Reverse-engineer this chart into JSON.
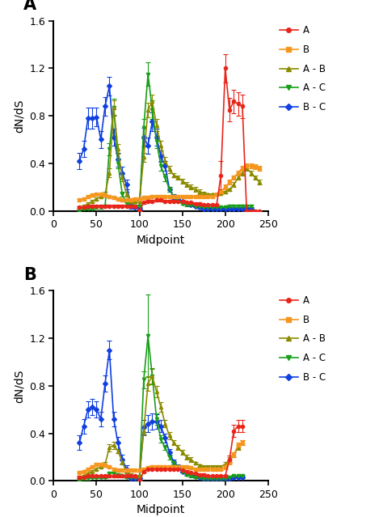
{
  "panel_A": {
    "A": {
      "x": [
        30,
        35,
        40,
        45,
        50,
        55,
        60,
        65,
        70,
        75,
        80,
        85,
        90,
        95,
        100,
        105,
        110,
        115,
        120,
        125,
        130,
        135,
        140,
        145,
        150,
        155,
        160,
        165,
        170,
        175,
        180,
        185,
        190,
        195,
        200,
        205,
        210,
        215,
        220,
        225,
        230,
        235,
        240
      ],
      "y": [
        0.03,
        0.03,
        0.04,
        0.04,
        0.04,
        0.04,
        0.04,
        0.04,
        0.04,
        0.04,
        0.04,
        0.04,
        0.04,
        0.04,
        0.0,
        0.07,
        0.08,
        0.08,
        0.09,
        0.09,
        0.08,
        0.08,
        0.08,
        0.08,
        0.08,
        0.07,
        0.07,
        0.06,
        0.06,
        0.05,
        0.05,
        0.05,
        0.05,
        0.3,
        1.2,
        0.85,
        0.92,
        0.9,
        0.88,
        0.0,
        0.0,
        0.0,
        0.0
      ],
      "yerr": [
        0.01,
        0.01,
        0.01,
        0.01,
        0.01,
        0.01,
        0.01,
        0.01,
        0.01,
        0.01,
        0.01,
        0.01,
        0.01,
        0.01,
        0.0,
        0.01,
        0.01,
        0.01,
        0.01,
        0.01,
        0.01,
        0.01,
        0.01,
        0.01,
        0.01,
        0.01,
        0.01,
        0.01,
        0.01,
        0.01,
        0.01,
        0.01,
        0.01,
        0.12,
        0.12,
        0.1,
        0.1,
        0.1,
        0.1,
        0.0,
        0.0,
        0.0,
        0.0
      ]
    },
    "B": {
      "x": [
        30,
        35,
        40,
        45,
        50,
        55,
        60,
        65,
        70,
        75,
        80,
        85,
        90,
        95,
        100,
        105,
        110,
        115,
        120,
        125,
        130,
        135,
        140,
        145,
        150,
        155,
        160,
        165,
        170,
        175,
        180,
        185,
        190,
        195,
        200,
        205,
        210,
        215,
        220,
        225,
        230,
        235,
        240
      ],
      "y": [
        0.09,
        0.1,
        0.12,
        0.13,
        0.14,
        0.14,
        0.13,
        0.12,
        0.11,
        0.1,
        0.09,
        0.09,
        0.09,
        0.1,
        0.1,
        0.11,
        0.11,
        0.12,
        0.12,
        0.12,
        0.12,
        0.12,
        0.12,
        0.12,
        0.12,
        0.12,
        0.12,
        0.12,
        0.12,
        0.12,
        0.12,
        0.12,
        0.14,
        0.16,
        0.2,
        0.24,
        0.28,
        0.32,
        0.36,
        0.38,
        0.38,
        0.37,
        0.36
      ],
      "yerr": [
        0.01,
        0.01,
        0.01,
        0.01,
        0.01,
        0.01,
        0.01,
        0.01,
        0.01,
        0.01,
        0.01,
        0.01,
        0.01,
        0.01,
        0.01,
        0.01,
        0.01,
        0.01,
        0.01,
        0.01,
        0.01,
        0.01,
        0.01,
        0.01,
        0.01,
        0.01,
        0.01,
        0.01,
        0.01,
        0.01,
        0.01,
        0.01,
        0.01,
        0.01,
        0.02,
        0.02,
        0.02,
        0.02,
        0.02,
        0.02,
        0.02,
        0.02,
        0.02
      ]
    },
    "AB": {
      "x": [
        30,
        35,
        40,
        45,
        50,
        55,
        60,
        65,
        70,
        75,
        80,
        85,
        90,
        95,
        100,
        105,
        110,
        115,
        120,
        125,
        130,
        135,
        140,
        145,
        150,
        155,
        160,
        165,
        170,
        175,
        180,
        185,
        190,
        195,
        200,
        205,
        210,
        215,
        220,
        225,
        230,
        235,
        240
      ],
      "y": [
        0.03,
        0.04,
        0.06,
        0.08,
        0.1,
        0.12,
        0.14,
        0.32,
        0.87,
        0.52,
        0.28,
        0.14,
        0.08,
        0.08,
        0.08,
        0.45,
        0.85,
        0.92,
        0.72,
        0.55,
        0.42,
        0.35,
        0.3,
        0.28,
        0.25,
        0.22,
        0.2,
        0.18,
        0.16,
        0.15,
        0.14,
        0.14,
        0.14,
        0.15,
        0.16,
        0.18,
        0.22,
        0.28,
        0.32,
        0.36,
        0.32,
        0.28,
        0.24
      ],
      "yerr": [
        0.01,
        0.01,
        0.01,
        0.01,
        0.01,
        0.01,
        0.02,
        0.04,
        0.06,
        0.04,
        0.03,
        0.02,
        0.01,
        0.01,
        0.01,
        0.04,
        0.06,
        0.06,
        0.05,
        0.04,
        0.03,
        0.03,
        0.02,
        0.02,
        0.02,
        0.02,
        0.02,
        0.02,
        0.02,
        0.01,
        0.01,
        0.01,
        0.01,
        0.01,
        0.01,
        0.01,
        0.02,
        0.02,
        0.02,
        0.02,
        0.02,
        0.02,
        0.02
      ]
    },
    "AC": {
      "x": [
        30,
        35,
        40,
        45,
        50,
        55,
        60,
        65,
        70,
        75,
        80,
        85,
        90,
        95,
        100,
        105,
        110,
        115,
        120,
        125,
        130,
        135,
        140,
        145,
        150,
        155,
        160,
        165,
        170,
        175,
        180,
        185,
        190,
        195,
        200,
        205,
        210,
        215,
        220,
        225,
        230
      ],
      "y": [
        0.01,
        0.02,
        0.02,
        0.02,
        0.03,
        0.03,
        0.04,
        0.52,
        0.87,
        0.4,
        0.14,
        0.06,
        0.04,
        0.04,
        0.04,
        0.7,
        1.15,
        0.85,
        0.58,
        0.38,
        0.28,
        0.18,
        0.12,
        0.08,
        0.06,
        0.05,
        0.05,
        0.04,
        0.04,
        0.03,
        0.03,
        0.03,
        0.03,
        0.03,
        0.03,
        0.04,
        0.04,
        0.04,
        0.04,
        0.04,
        0.04
      ],
      "yerr": [
        0.01,
        0.01,
        0.01,
        0.01,
        0.01,
        0.01,
        0.01,
        0.05,
        0.07,
        0.04,
        0.02,
        0.01,
        0.01,
        0.01,
        0.01,
        0.07,
        0.1,
        0.08,
        0.05,
        0.04,
        0.03,
        0.02,
        0.01,
        0.01,
        0.01,
        0.01,
        0.01,
        0.01,
        0.01,
        0.01,
        0.01,
        0.01,
        0.01,
        0.01,
        0.01,
        0.01,
        0.01,
        0.01,
        0.01,
        0.01,
        0.01
      ]
    },
    "BC": {
      "x": [
        30,
        35,
        40,
        45,
        50,
        55,
        60,
        65,
        70,
        75,
        80,
        85,
        90,
        95,
        100,
        105,
        110,
        115,
        120,
        125,
        130,
        135,
        140,
        145,
        150,
        155,
        160,
        165,
        170,
        175,
        180,
        185,
        190,
        195,
        200,
        205,
        210,
        215,
        220,
        225,
        230
      ],
      "y": [
        0.42,
        0.52,
        0.78,
        0.78,
        0.79,
        0.6,
        0.88,
        1.05,
        0.62,
        0.43,
        0.32,
        0.22,
        0.04,
        0.03,
        0.02,
        0.62,
        0.55,
        0.75,
        0.62,
        0.46,
        0.38,
        0.18,
        0.12,
        0.1,
        0.08,
        0.06,
        0.05,
        0.04,
        0.03,
        0.02,
        0.02,
        0.02,
        0.02,
        0.02,
        0.02,
        0.02,
        0.02,
        0.02,
        0.02,
        0.02,
        0.02
      ],
      "yerr": [
        0.07,
        0.07,
        0.09,
        0.09,
        0.08,
        0.07,
        0.08,
        0.08,
        0.07,
        0.06,
        0.05,
        0.04,
        0.02,
        0.01,
        0.01,
        0.08,
        0.07,
        0.08,
        0.07,
        0.05,
        0.04,
        0.02,
        0.02,
        0.01,
        0.01,
        0.01,
        0.01,
        0.01,
        0.01,
        0.01,
        0.01,
        0.01,
        0.01,
        0.01,
        0.01,
        0.01,
        0.01,
        0.01,
        0.01,
        0.01,
        0.01
      ]
    }
  },
  "panel_B": {
    "A": {
      "x": [
        30,
        35,
        40,
        45,
        50,
        55,
        60,
        65,
        70,
        75,
        80,
        85,
        90,
        95,
        100,
        105,
        110,
        115,
        120,
        125,
        130,
        135,
        140,
        145,
        150,
        155,
        160,
        165,
        170,
        175,
        180,
        185,
        190,
        195,
        200,
        205,
        210,
        215,
        220
      ],
      "y": [
        0.03,
        0.03,
        0.04,
        0.04,
        0.04,
        0.04,
        0.04,
        0.04,
        0.04,
        0.04,
        0.04,
        0.04,
        0.04,
        0.04,
        0.0,
        0.08,
        0.1,
        0.1,
        0.1,
        0.1,
        0.1,
        0.1,
        0.1,
        0.1,
        0.09,
        0.08,
        0.07,
        0.06,
        0.05,
        0.05,
        0.04,
        0.04,
        0.04,
        0.04,
        0.04,
        0.18,
        0.42,
        0.46,
        0.46
      ],
      "yerr": [
        0.01,
        0.01,
        0.01,
        0.01,
        0.01,
        0.01,
        0.01,
        0.01,
        0.01,
        0.01,
        0.01,
        0.01,
        0.01,
        0.01,
        0.0,
        0.01,
        0.01,
        0.01,
        0.01,
        0.01,
        0.01,
        0.01,
        0.01,
        0.01,
        0.01,
        0.01,
        0.01,
        0.01,
        0.01,
        0.01,
        0.01,
        0.01,
        0.01,
        0.01,
        0.01,
        0.03,
        0.05,
        0.05,
        0.05
      ]
    },
    "B": {
      "x": [
        30,
        35,
        40,
        45,
        50,
        55,
        60,
        65,
        70,
        75,
        80,
        85,
        90,
        95,
        100,
        105,
        110,
        115,
        120,
        125,
        130,
        135,
        140,
        145,
        150,
        155,
        160,
        165,
        170,
        175,
        180,
        185,
        190,
        195,
        200,
        205,
        210,
        215,
        220
      ],
      "y": [
        0.07,
        0.08,
        0.1,
        0.12,
        0.14,
        0.14,
        0.13,
        0.12,
        0.1,
        0.09,
        0.09,
        0.09,
        0.09,
        0.09,
        0.09,
        0.1,
        0.11,
        0.12,
        0.12,
        0.12,
        0.12,
        0.12,
        0.12,
        0.12,
        0.12,
        0.12,
        0.11,
        0.1,
        0.1,
        0.1,
        0.1,
        0.1,
        0.1,
        0.1,
        0.12,
        0.16,
        0.22,
        0.3,
        0.32
      ],
      "yerr": [
        0.01,
        0.01,
        0.01,
        0.01,
        0.01,
        0.01,
        0.01,
        0.01,
        0.01,
        0.01,
        0.01,
        0.01,
        0.01,
        0.01,
        0.01,
        0.01,
        0.01,
        0.01,
        0.01,
        0.01,
        0.01,
        0.01,
        0.01,
        0.01,
        0.01,
        0.01,
        0.01,
        0.01,
        0.01,
        0.01,
        0.01,
        0.01,
        0.01,
        0.01,
        0.02,
        0.02,
        0.02,
        0.02,
        0.02
      ]
    },
    "AB": {
      "x": [
        30,
        35,
        40,
        45,
        50,
        55,
        60,
        65,
        70,
        75,
        80,
        85,
        90,
        95,
        100,
        105,
        110,
        115,
        120,
        125,
        130,
        135,
        140,
        145,
        150,
        155,
        160,
        165,
        170,
        175,
        180,
        185,
        190,
        195,
        200,
        205,
        210,
        215,
        220
      ],
      "y": [
        0.03,
        0.04,
        0.06,
        0.08,
        0.1,
        0.12,
        0.14,
        0.28,
        0.3,
        0.25,
        0.16,
        0.07,
        0.05,
        0.04,
        0.04,
        0.42,
        0.82,
        0.88,
        0.75,
        0.62,
        0.48,
        0.38,
        0.32,
        0.28,
        0.24,
        0.2,
        0.18,
        0.15,
        0.13,
        0.12,
        0.12,
        0.12,
        0.12,
        0.12,
        0.14,
        0.18,
        0.22,
        0.28,
        0.32
      ],
      "yerr": [
        0.01,
        0.01,
        0.01,
        0.01,
        0.01,
        0.01,
        0.02,
        0.03,
        0.03,
        0.02,
        0.02,
        0.01,
        0.01,
        0.01,
        0.01,
        0.04,
        0.06,
        0.06,
        0.05,
        0.04,
        0.03,
        0.03,
        0.02,
        0.02,
        0.02,
        0.02,
        0.02,
        0.01,
        0.01,
        0.01,
        0.01,
        0.01,
        0.01,
        0.01,
        0.02,
        0.02,
        0.02,
        0.02,
        0.02
      ]
    },
    "AC": {
      "x": [
        30,
        35,
        40,
        45,
        50,
        55,
        60,
        65,
        70,
        75,
        80,
        85,
        90,
        95,
        100,
        105,
        110,
        115,
        120,
        125,
        130,
        135,
        140,
        145,
        150,
        155,
        160,
        165,
        170,
        175,
        180,
        185,
        190,
        195,
        200,
        205,
        210,
        215,
        220
      ],
      "y": [
        0.01,
        0.02,
        0.02,
        0.03,
        0.03,
        0.03,
        0.03,
        0.06,
        0.07,
        0.05,
        0.04,
        0.03,
        0.03,
        0.03,
        0.03,
        0.85,
        1.22,
        0.88,
        0.52,
        0.35,
        0.28,
        0.2,
        0.15,
        0.12,
        0.08,
        0.05,
        0.04,
        0.03,
        0.03,
        0.02,
        0.02,
        0.02,
        0.02,
        0.02,
        0.02,
        0.03,
        0.04,
        0.04,
        0.04
      ],
      "yerr": [
        0.01,
        0.01,
        0.01,
        0.01,
        0.01,
        0.01,
        0.01,
        0.01,
        0.01,
        0.01,
        0.01,
        0.01,
        0.01,
        0.01,
        0.01,
        0.07,
        0.35,
        0.07,
        0.05,
        0.03,
        0.02,
        0.02,
        0.01,
        0.01,
        0.01,
        0.01,
        0.01,
        0.01,
        0.01,
        0.01,
        0.01,
        0.01,
        0.01,
        0.01,
        0.01,
        0.01,
        0.01,
        0.01,
        0.01
      ]
    },
    "BC": {
      "x": [
        30,
        35,
        40,
        45,
        50,
        55,
        60,
        65,
        70,
        75,
        80,
        85,
        90,
        95,
        100,
        105,
        110,
        115,
        120,
        125,
        130,
        135,
        140,
        145,
        150,
        155,
        160,
        165,
        170,
        175,
        180,
        185,
        190,
        195,
        200,
        205,
        210,
        215,
        220
      ],
      "y": [
        0.32,
        0.46,
        0.6,
        0.62,
        0.6,
        0.52,
        0.82,
        1.1,
        0.52,
        0.32,
        0.18,
        0.1,
        0.02,
        0.02,
        0.02,
        0.45,
        0.48,
        0.5,
        0.5,
        0.46,
        0.36,
        0.24,
        0.16,
        0.12,
        0.08,
        0.06,
        0.05,
        0.04,
        0.03,
        0.02,
        0.02,
        0.02,
        0.02,
        0.02,
        0.02,
        0.02,
        0.03,
        0.03,
        0.03
      ],
      "yerr": [
        0.06,
        0.06,
        0.07,
        0.07,
        0.07,
        0.06,
        0.07,
        0.08,
        0.06,
        0.05,
        0.04,
        0.03,
        0.01,
        0.01,
        0.01,
        0.06,
        0.07,
        0.07,
        0.06,
        0.05,
        0.04,
        0.03,
        0.02,
        0.02,
        0.01,
        0.01,
        0.01,
        0.01,
        0.01,
        0.01,
        0.01,
        0.01,
        0.01,
        0.01,
        0.01,
        0.01,
        0.01,
        0.01,
        0.01
      ]
    }
  },
  "colors": {
    "A": "#e8251a",
    "B": "#f5961e",
    "AB": "#8b8b00",
    "AC": "#1a9e1a",
    "BC": "#1040e0"
  },
  "markers": {
    "A": "o",
    "B": "s",
    "AB": "^",
    "AC": "v",
    "BC": "D"
  },
  "marker_sizes": {
    "A": 3,
    "B": 3,
    "AB": 3,
    "AC": 3,
    "BC": 3
  },
  "legend_labels": {
    "A": "A",
    "B": "B",
    "AB": "A - B",
    "AC": "A - C",
    "BC": "B - C"
  },
  "ylabel": "dN/dS",
  "xlabel": "Midpoint",
  "ylim": [
    0,
    1.6
  ],
  "xlim": [
    0,
    250
  ],
  "xticks": [
    0,
    50,
    100,
    150,
    200,
    250
  ],
  "yticks": [
    0.0,
    0.4,
    0.8,
    1.2,
    1.6
  ]
}
